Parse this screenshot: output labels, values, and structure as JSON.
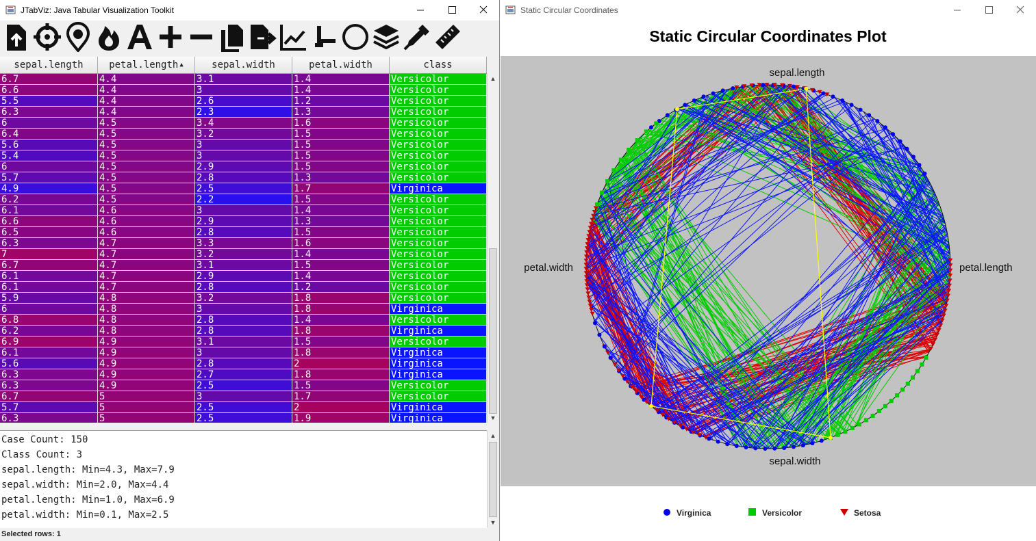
{
  "left_window": {
    "title": "JTabViz: Java Tabular Visualization Toolkit",
    "toolbar_icons": [
      "import-file-icon",
      "crosshair-icon",
      "eye-drop-icon",
      "flame-icon",
      "font-a-icon",
      "plus-icon",
      "minus-icon",
      "copy-icon",
      "export-icon",
      "line-chart-icon",
      "axis-icon",
      "circle-icon",
      "layers-icon",
      "eyedropper-icon",
      "ruler-icon"
    ],
    "table": {
      "columns": [
        {
          "label": "sepal.length",
          "sort": ""
        },
        {
          "label": "petal.length",
          "sort": "▲"
        },
        {
          "label": "sepal.width",
          "sort": ""
        },
        {
          "label": "petal.width",
          "sort": ""
        },
        {
          "label": "class",
          "sort": ""
        }
      ],
      "rows": [
        [
          "6.7",
          "4.4",
          "3.1",
          "1.4",
          "Versicolor"
        ],
        [
          "6.6",
          "4.4",
          "3",
          "1.4",
          "Versicolor"
        ],
        [
          "5.5",
          "4.4",
          "2.6",
          "1.2",
          "Versicolor"
        ],
        [
          "6.3",
          "4.4",
          "2.3",
          "1.3",
          "Versicolor"
        ],
        [
          "6",
          "4.5",
          "3.4",
          "1.6",
          "Versicolor"
        ],
        [
          "6.4",
          "4.5",
          "3.2",
          "1.5",
          "Versicolor"
        ],
        [
          "5.6",
          "4.5",
          "3",
          "1.5",
          "Versicolor"
        ],
        [
          "5.4",
          "4.5",
          "3",
          "1.5",
          "Versicolor"
        ],
        [
          "6",
          "4.5",
          "2.9",
          "1.5",
          "Versicolor"
        ],
        [
          "5.7",
          "4.5",
          "2.8",
          "1.3",
          "Versicolor"
        ],
        [
          "4.9",
          "4.5",
          "2.5",
          "1.7",
          "Virginica"
        ],
        [
          "6.2",
          "4.5",
          "2.2",
          "1.5",
          "Versicolor"
        ],
        [
          "6.1",
          "4.6",
          "3",
          "1.4",
          "Versicolor"
        ],
        [
          "6.6",
          "4.6",
          "2.9",
          "1.3",
          "Versicolor"
        ],
        [
          "6.5",
          "4.6",
          "2.8",
          "1.5",
          "Versicolor"
        ],
        [
          "6.3",
          "4.7",
          "3.3",
          "1.6",
          "Versicolor"
        ],
        [
          "7",
          "4.7",
          "3.2",
          "1.4",
          "Versicolor"
        ],
        [
          "6.7",
          "4.7",
          "3.1",
          "1.5",
          "Versicolor"
        ],
        [
          "6.1",
          "4.7",
          "2.9",
          "1.4",
          "Versicolor"
        ],
        [
          "6.1",
          "4.7",
          "2.8",
          "1.2",
          "Versicolor"
        ],
        [
          "5.9",
          "4.8",
          "3.2",
          "1.8",
          "Versicolor"
        ],
        [
          "6",
          "4.8",
          "3",
          "1.8",
          "Virginica"
        ],
        [
          "6.8",
          "4.8",
          "2.8",
          "1.4",
          "Versicolor"
        ],
        [
          "6.2",
          "4.8",
          "2.8",
          "1.8",
          "Virginica"
        ],
        [
          "6.9",
          "4.9",
          "3.1",
          "1.5",
          "Versicolor"
        ],
        [
          "6.1",
          "4.9",
          "3",
          "1.8",
          "Virginica"
        ],
        [
          "5.6",
          "4.9",
          "2.8",
          "2",
          "Virginica"
        ],
        [
          "6.3",
          "4.9",
          "2.7",
          "1.8",
          "Virginica"
        ],
        [
          "6.3",
          "4.9",
          "2.5",
          "1.5",
          "Versicolor"
        ],
        [
          "6.7",
          "5",
          "3",
          "1.7",
          "Versicolor"
        ],
        [
          "5.7",
          "5",
          "2.5",
          "2",
          "Virginica"
        ],
        [
          "6.3",
          "5",
          "2.5",
          "1.9",
          "Virginica"
        ]
      ]
    },
    "info_lines": [
      "Case Count: 150",
      "Class Count: 3",
      "sepal.length: Min=4.3, Max=7.9",
      "sepal.width: Min=2.0, Max=4.4",
      "petal.length: Min=1.0, Max=6.9",
      "petal.width: Min=0.1, Max=2.5"
    ],
    "status": "Selected rows: 1",
    "ranges": {
      "sepal.length": [
        4.3,
        7.9
      ],
      "petal.length": [
        1.0,
        6.9
      ],
      "sepal.width": [
        2.0,
        4.4
      ],
      "petal.width": [
        0.1,
        2.5
      ]
    },
    "colors": {
      "low": "#1a10ff",
      "high": "#cc0033",
      "Versicolor": "#00cc00",
      "Virginica": "#0a14ff",
      "Setosa": "#cc0000"
    }
  },
  "right_window": {
    "title": "Static Circular Coordinates",
    "plot_title": "Static Circular Coordinates Plot",
    "axis_labels": {
      "top": "sepal.length",
      "right": "petal.length",
      "bottom": "sepal.width",
      "left": "petal.width"
    },
    "legend": [
      {
        "label": "Virginica",
        "color": "#0000ee",
        "marker": "circle"
      },
      {
        "label": "Versicolor",
        "color": "#00cc00",
        "marker": "square"
      },
      {
        "label": "Setosa",
        "color": "#cc0000",
        "marker": "triangle"
      }
    ],
    "background": "#c2c2c2"
  }
}
